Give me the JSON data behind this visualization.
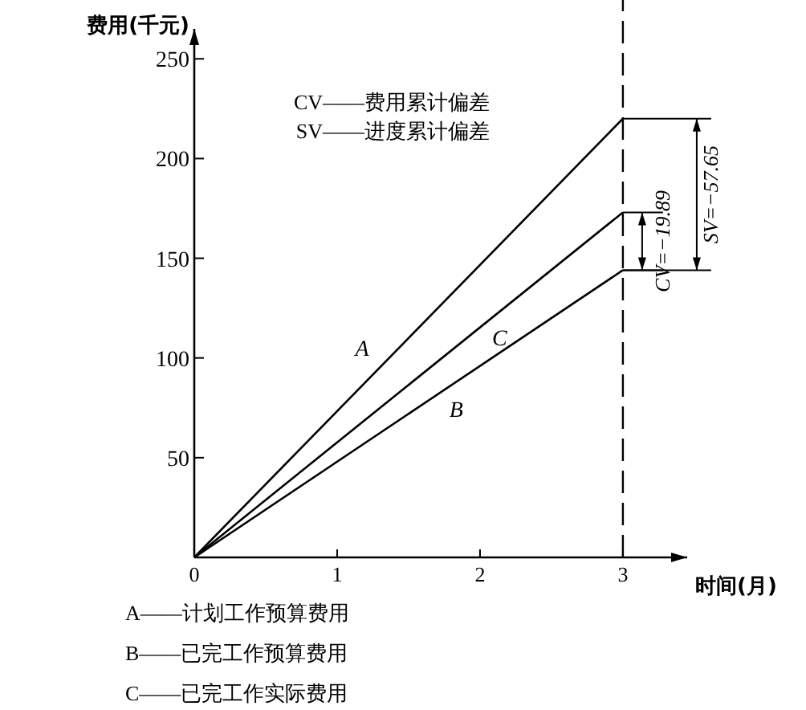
{
  "chart_data": {
    "type": "line",
    "xlabel": "时间(月)",
    "ylabel": "费用(千元)",
    "xlim": [
      0,
      3.45
    ],
    "ylim": [
      0,
      265
    ],
    "xticks": [
      0,
      1,
      2,
      3
    ],
    "yticks": [
      50,
      100,
      150,
      200,
      250
    ],
    "grid": false,
    "legend": false,
    "marker": "none",
    "line_style": "solid",
    "series": [
      {
        "name": "A",
        "color": "#000000",
        "values": [
          0,
          220
        ]
      },
      {
        "name": "B",
        "color": "#000000",
        "values": [
          0,
          144
        ]
      },
      {
        "name": "C",
        "color": "#000000",
        "values": [
          0,
          173
        ]
      }
    ],
    "x": [
      0,
      3
    ],
    "ref_lines": [
      {
        "axis": "x",
        "value": 3,
        "line_style": "dashed",
        "color": "#000000"
      }
    ],
    "annotations": [
      "CV——费用累计偏差",
      "SV——进度累计偏差",
      {
        "text": "CV=−19.89",
        "x": 3,
        "y": 173
      },
      {
        "text": "SV=−57.65",
        "x": 3,
        "y": 220
      },
      "A——计划工作预算费用",
      "B——已完工作预算费用",
      "C——已完工作实际费用"
    ]
  }
}
